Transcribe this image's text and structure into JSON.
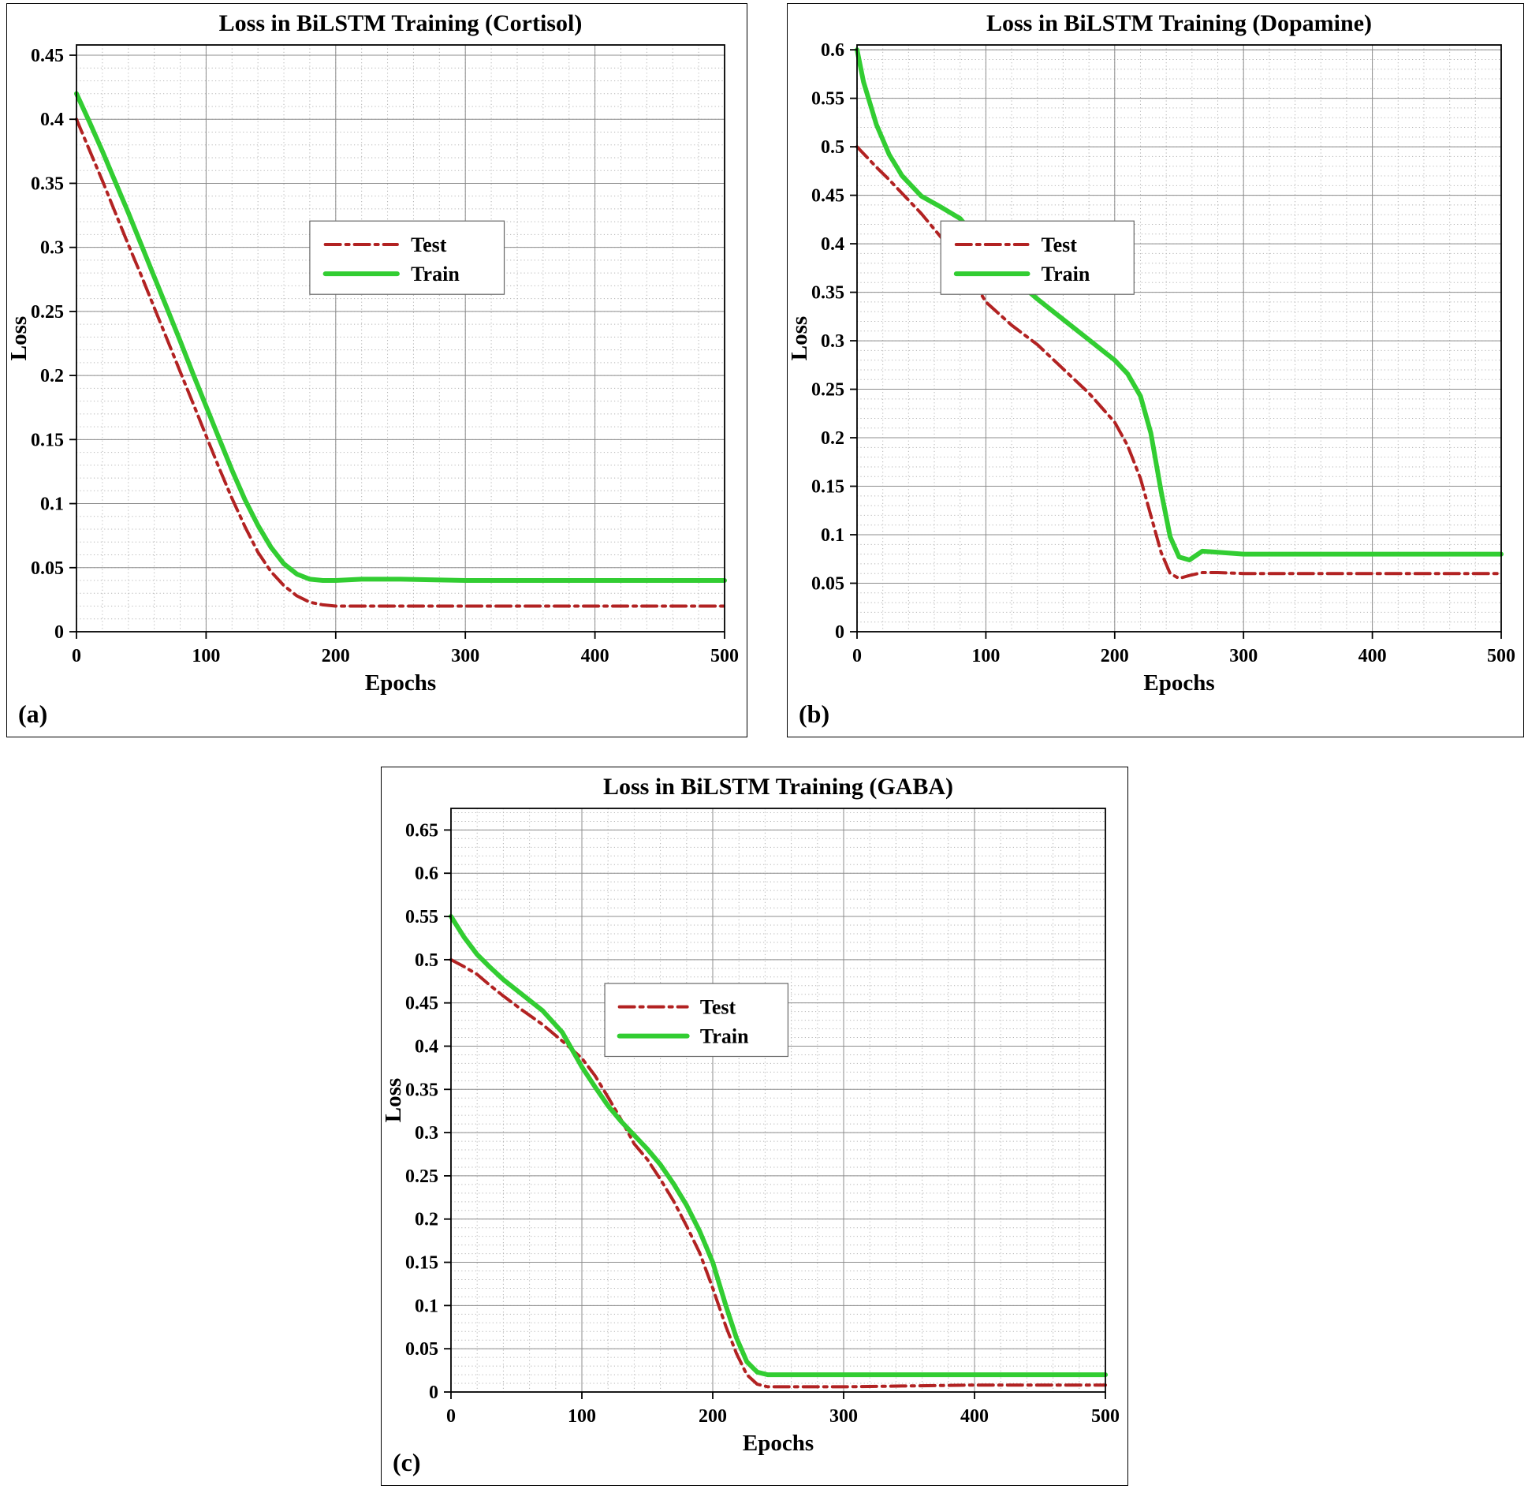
{
  "figure": {
    "background": "#ffffff",
    "panels": [
      {
        "label": "(a)"
      },
      {
        "label": "(b)"
      },
      {
        "label": "(c)"
      }
    ]
  },
  "colors": {
    "test": "#b22222",
    "train": "#32cd32",
    "grid_major": "#8c8c8c",
    "grid_minor": "#b5b5b5",
    "axis": "#000000",
    "legend_border": "#666666",
    "legend_fill": "#ffffff"
  },
  "chart_data": [
    {
      "type": "line",
      "panel": "a",
      "title": "Loss in BiLSTM Training (Cortisol)",
      "xlabel": "Epochs",
      "ylabel": "Loss",
      "xlim": [
        0,
        500
      ],
      "ylim": [
        0,
        0.458
      ],
      "grid": true,
      "minor_x": 20,
      "minor_y": 0.01,
      "x_ticks": {
        "values": [
          0,
          100,
          200,
          300,
          400,
          500
        ],
        "labels": [
          "0",
          "100",
          "200",
          "300",
          "400",
          "500"
        ]
      },
      "y_ticks": {
        "values": [
          0,
          0.05,
          0.1,
          0.15,
          0.2,
          0.25,
          0.3,
          0.35,
          0.4,
          0.45
        ],
        "labels": [
          "0",
          "0.05",
          "0.1",
          "0.15",
          "0.2",
          "0.25",
          "0.3",
          "0.35",
          "0.4",
          "0.45"
        ]
      },
      "legend": {
        "position": "center",
        "x": 0.36,
        "y": 0.3,
        "w": 0.3,
        "h": 0.125,
        "entries": [
          "Test",
          "Train"
        ]
      },
      "series": [
        {
          "name": "Test",
          "color": "#b22222",
          "style": "dashdot",
          "width": 4,
          "x": [
            0,
            10,
            20,
            30,
            40,
            50,
            60,
            70,
            80,
            90,
            100,
            110,
            120,
            130,
            140,
            150,
            160,
            170,
            180,
            190,
            200,
            220,
            250,
            300,
            350,
            400,
            450,
            500
          ],
          "y": [
            0.4,
            0.376,
            0.352,
            0.327,
            0.302,
            0.278,
            0.253,
            0.228,
            0.203,
            0.178,
            0.153,
            0.128,
            0.104,
            0.082,
            0.062,
            0.047,
            0.036,
            0.028,
            0.023,
            0.021,
            0.02,
            0.02,
            0.02,
            0.02,
            0.02,
            0.02,
            0.02,
            0.02
          ]
        },
        {
          "name": "Train",
          "color": "#32cd32",
          "style": "solid",
          "width": 6,
          "x": [
            0,
            10,
            20,
            30,
            40,
            50,
            60,
            70,
            80,
            90,
            100,
            110,
            120,
            130,
            140,
            150,
            160,
            170,
            180,
            190,
            200,
            220,
            250,
            300,
            350,
            400,
            450,
            500
          ],
          "y": [
            0.42,
            0.398,
            0.375,
            0.351,
            0.327,
            0.302,
            0.277,
            0.252,
            0.227,
            0.201,
            0.176,
            0.151,
            0.126,
            0.103,
            0.083,
            0.066,
            0.053,
            0.045,
            0.041,
            0.04,
            0.04,
            0.041,
            0.041,
            0.04,
            0.04,
            0.04,
            0.04,
            0.04
          ]
        }
      ]
    },
    {
      "type": "line",
      "panel": "b",
      "title": "Loss in BiLSTM Training (Dopamine)",
      "xlabel": "Epochs",
      "ylabel": "Loss",
      "xlim": [
        0,
        500
      ],
      "ylim": [
        0,
        0.605
      ],
      "grid": true,
      "minor_x": 20,
      "minor_y": 0.01,
      "x_ticks": {
        "values": [
          0,
          100,
          200,
          300,
          400,
          500
        ],
        "labels": [
          "0",
          "100",
          "200",
          "300",
          "400",
          "500"
        ]
      },
      "y_ticks": {
        "values": [
          0,
          0.05,
          0.1,
          0.15,
          0.2,
          0.25,
          0.3,
          0.35,
          0.4,
          0.45,
          0.5,
          0.55,
          0.6
        ],
        "labels": [
          "0",
          "0.05",
          "0.1",
          "0.15",
          "0.2",
          "0.25",
          "0.3",
          "0.35",
          "0.4",
          "0.45",
          "0.5",
          "0.55",
          "0.6"
        ]
      },
      "legend": {
        "position": "center-left",
        "x": 0.13,
        "y": 0.3,
        "w": 0.3,
        "h": 0.125,
        "entries": [
          "Test",
          "Train"
        ]
      },
      "series": [
        {
          "name": "Test",
          "color": "#b22222",
          "style": "dashdot",
          "width": 4,
          "x": [
            0,
            5,
            15,
            25,
            35,
            50,
            65,
            80,
            100,
            120,
            140,
            160,
            180,
            200,
            210,
            220,
            228,
            236,
            243,
            250,
            258,
            268,
            280,
            300,
            350,
            400,
            450,
            500
          ],
          "y": [
            0.5,
            0.493,
            0.479,
            0.466,
            0.452,
            0.431,
            0.407,
            0.384,
            0.34,
            0.316,
            0.296,
            0.271,
            0.246,
            0.216,
            0.192,
            0.158,
            0.12,
            0.082,
            0.06,
            0.055,
            0.058,
            0.061,
            0.061,
            0.06,
            0.06,
            0.06,
            0.06,
            0.06
          ]
        },
        {
          "name": "Train",
          "color": "#32cd32",
          "style": "solid",
          "width": 6,
          "x": [
            0,
            5,
            15,
            25,
            35,
            50,
            65,
            80,
            100,
            120,
            140,
            160,
            180,
            200,
            210,
            220,
            228,
            236,
            243,
            250,
            258,
            268,
            280,
            300,
            350,
            400,
            450,
            500
          ],
          "y": [
            0.6,
            0.567,
            0.523,
            0.492,
            0.47,
            0.449,
            0.438,
            0.426,
            0.394,
            0.366,
            0.343,
            0.322,
            0.301,
            0.28,
            0.266,
            0.243,
            0.205,
            0.145,
            0.098,
            0.077,
            0.074,
            0.083,
            0.082,
            0.08,
            0.08,
            0.08,
            0.08,
            0.08
          ]
        }
      ]
    },
    {
      "type": "line",
      "panel": "c",
      "title": "Loss in BiLSTM Training (GABA)",
      "xlabel": "Epochs",
      "ylabel": "Loss",
      "xlim": [
        0,
        500
      ],
      "ylim": [
        0,
        0.675
      ],
      "grid": true,
      "minor_x": 20,
      "minor_y": 0.01,
      "x_ticks": {
        "values": [
          0,
          100,
          200,
          300,
          400,
          500
        ],
        "labels": [
          "0",
          "100",
          "200",
          "300",
          "400",
          "500"
        ]
      },
      "y_ticks": {
        "values": [
          0,
          0.05,
          0.1,
          0.15,
          0.2,
          0.25,
          0.3,
          0.35,
          0.4,
          0.45,
          0.5,
          0.55,
          0.6,
          0.65
        ],
        "labels": [
          "0",
          "0.05",
          "0.1",
          "0.15",
          "0.2",
          "0.25",
          "0.3",
          "0.35",
          "0.4",
          "0.45",
          "0.5",
          "0.55",
          "0.6",
          "0.65"
        ]
      },
      "legend": {
        "position": "center",
        "x": 0.235,
        "y": 0.3,
        "w": 0.28,
        "h": 0.125,
        "entries": [
          "Test",
          "Train"
        ]
      },
      "series": [
        {
          "name": "Test",
          "color": "#b22222",
          "style": "dashdot",
          "width": 4,
          "x": [
            0,
            10,
            20,
            30,
            40,
            55,
            70,
            85,
            100,
            110,
            120,
            130,
            140,
            150,
            160,
            170,
            180,
            190,
            200,
            210,
            218,
            226,
            234,
            242,
            255,
            300,
            400,
            500
          ],
          "y": [
            0.5,
            0.492,
            0.483,
            0.47,
            0.458,
            0.441,
            0.425,
            0.406,
            0.386,
            0.366,
            0.341,
            0.315,
            0.287,
            0.269,
            0.246,
            0.221,
            0.192,
            0.161,
            0.12,
            0.076,
            0.045,
            0.02,
            0.009,
            0.006,
            0.006,
            0.006,
            0.008,
            0.008
          ]
        },
        {
          "name": "Train",
          "color": "#32cd32",
          "style": "solid",
          "width": 6,
          "x": [
            0,
            10,
            20,
            30,
            40,
            55,
            70,
            85,
            100,
            110,
            120,
            130,
            140,
            150,
            160,
            170,
            180,
            190,
            200,
            210,
            218,
            226,
            234,
            242,
            255,
            300,
            400,
            500
          ],
          "y": [
            0.55,
            0.526,
            0.506,
            0.491,
            0.477,
            0.459,
            0.441,
            0.416,
            0.376,
            0.353,
            0.331,
            0.313,
            0.297,
            0.281,
            0.263,
            0.241,
            0.216,
            0.186,
            0.15,
            0.1,
            0.063,
            0.035,
            0.023,
            0.02,
            0.02,
            0.02,
            0.02,
            0.02
          ]
        }
      ]
    }
  ]
}
